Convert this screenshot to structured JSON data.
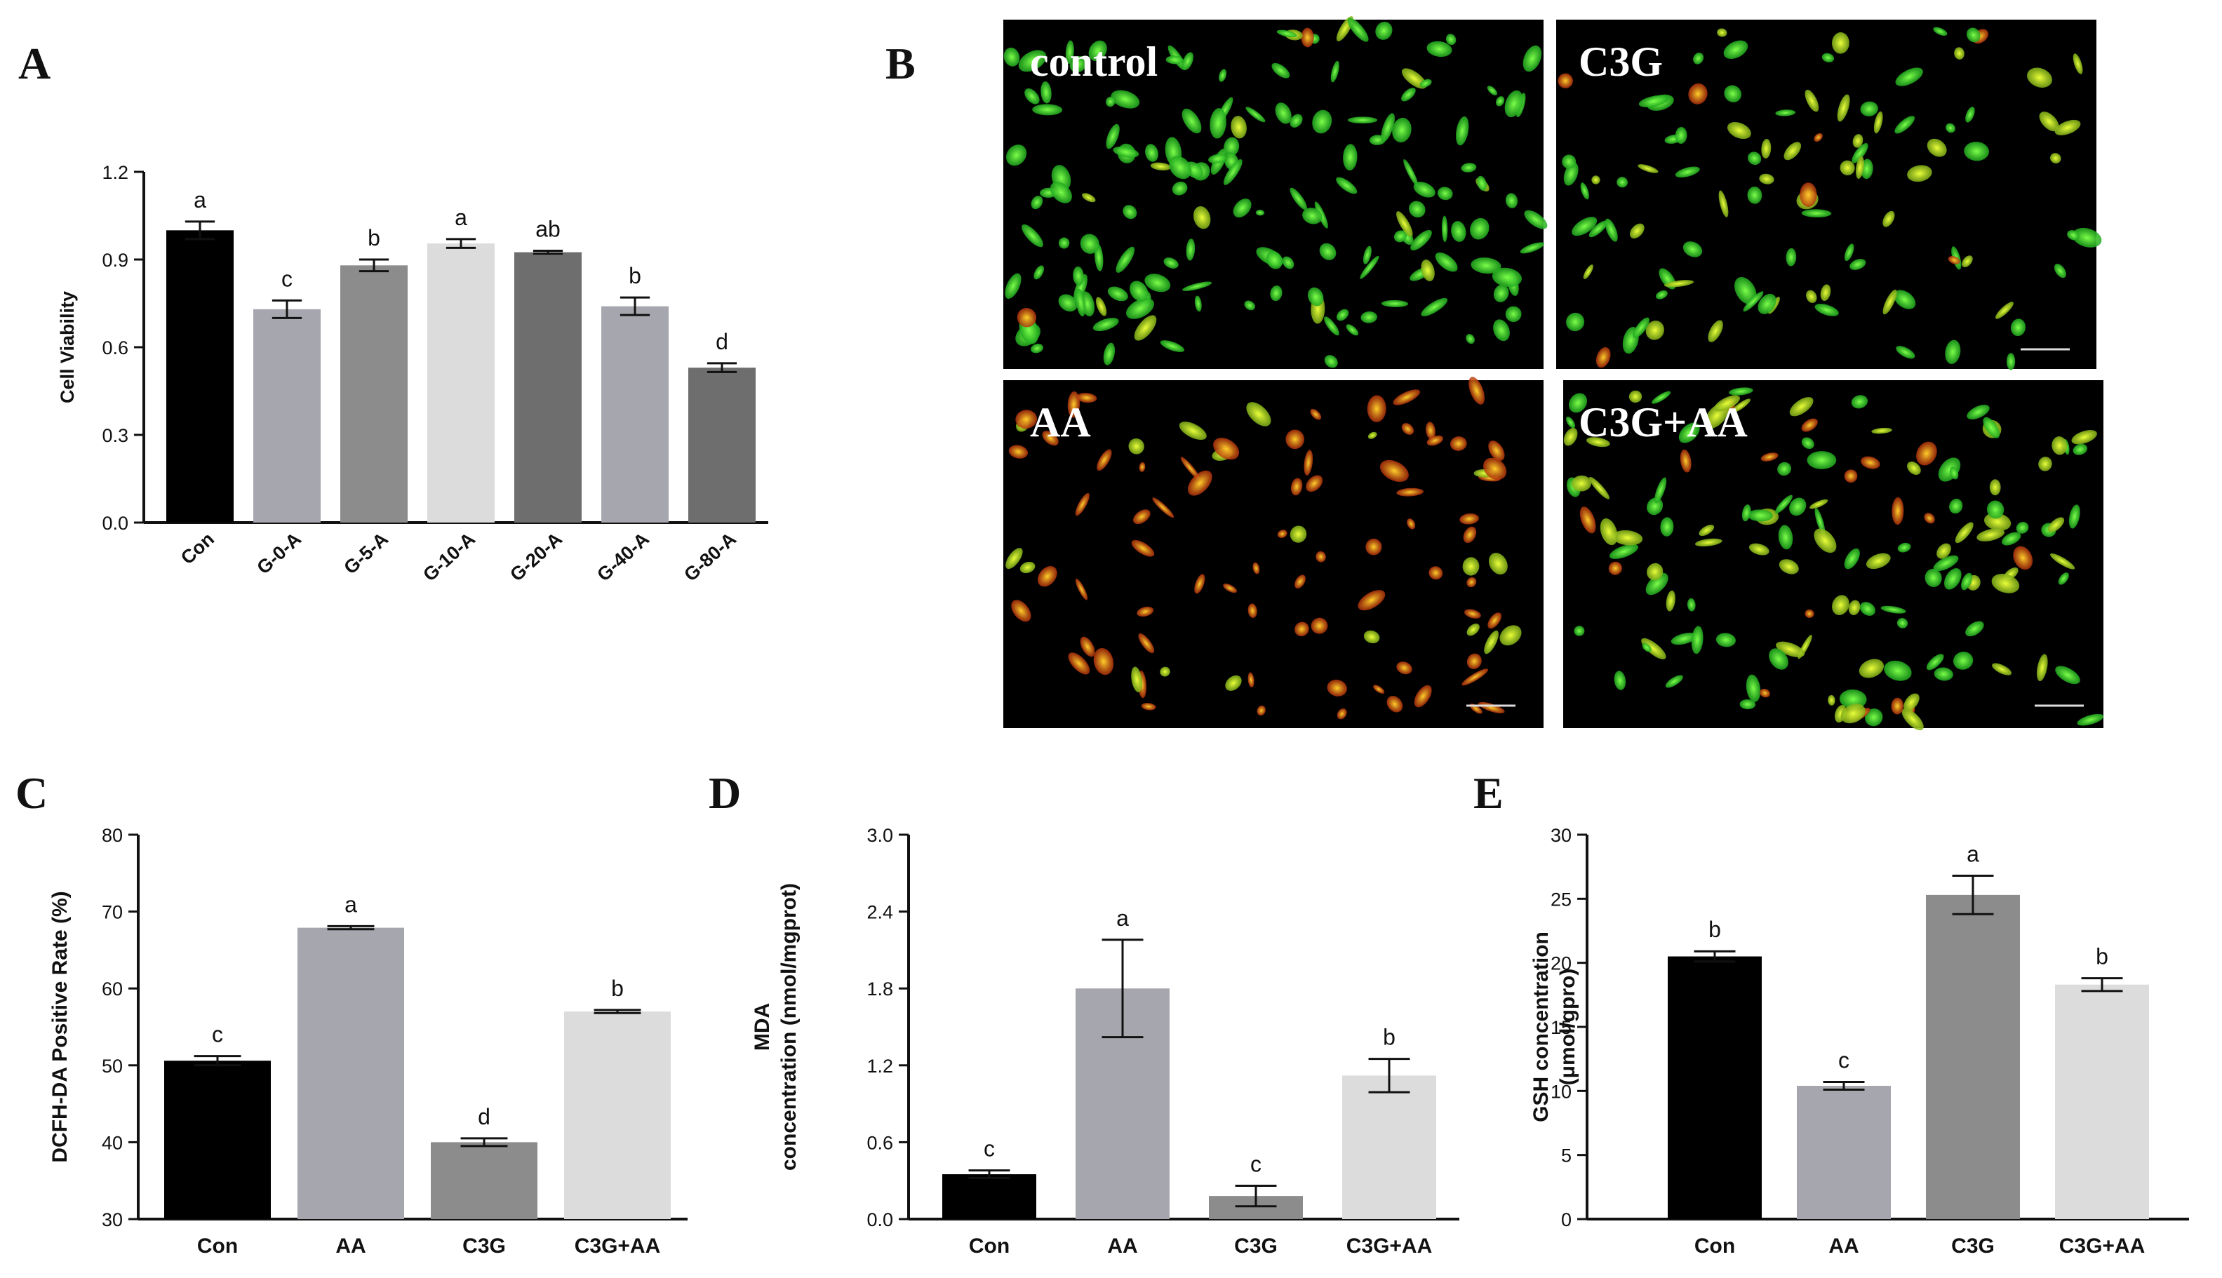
{
  "panel_labels": [
    "A",
    "B",
    "C",
    "D",
    "E"
  ],
  "chart_data": [
    {
      "panel": "A",
      "type": "bar",
      "categories": [
        "Con",
        "G-0-A",
        "G-5-A",
        "G-10-A",
        "G-20-A",
        "G-40-A",
        "G-80-A"
      ],
      "values": [
        1.0,
        0.73,
        0.88,
        0.955,
        0.925,
        0.74,
        0.53
      ],
      "errors": [
        0.03,
        0.03,
        0.02,
        0.015,
        0.005,
        0.03,
        0.015
      ],
      "letters": [
        "a",
        "c",
        "b",
        "a",
        "ab",
        "b",
        "d"
      ],
      "colors": [
        "#000000",
        "#a6a6ae",
        "#8c8c8c",
        "#dcdcdc",
        "#6e6e6e",
        "#a6a6ae",
        "#6e6e6e"
      ],
      "ylabel": "Cell Viability",
      "ylim": [
        0,
        1.2
      ],
      "yticks": [
        "0.0",
        "0.3",
        "0.6",
        "0.9",
        "1.2"
      ]
    },
    {
      "panel": "C",
      "type": "bar",
      "categories": [
        "Con",
        "AA",
        "C3G",
        "C3G+AA"
      ],
      "values": [
        50.6,
        67.9,
        40.0,
        57.0
      ],
      "errors": [
        0.6,
        0.2,
        0.5,
        0.2
      ],
      "letters": [
        "c",
        "a",
        "d",
        "b"
      ],
      "colors": [
        "#000000",
        "#a6a6ae",
        "#8c8c8c",
        "#dcdcdc"
      ],
      "ylabel": "DCFH-DA Positive Rate (%)",
      "ylim": [
        30,
        80
      ],
      "yticks": [
        "30",
        "40",
        "50",
        "60",
        "70",
        "80"
      ]
    },
    {
      "panel": "D",
      "type": "bar",
      "categories": [
        "Con",
        "AA",
        "C3G",
        "C3G+AA"
      ],
      "values": [
        0.35,
        1.8,
        0.18,
        1.12
      ],
      "errors": [
        0.03,
        0.38,
        0.08,
        0.13
      ],
      "letters": [
        "c",
        "a",
        "c",
        "b"
      ],
      "colors": [
        "#000000",
        "#a6a6ae",
        "#8c8c8c",
        "#dcdcdc"
      ],
      "ylabel_lines": [
        "MDA",
        "concentration (nmol/mgprot)"
      ],
      "ylim": [
        0,
        3.0
      ],
      "yticks": [
        "0.0",
        "0.6",
        "1.2",
        "1.8",
        "2.4",
        "3.0"
      ]
    },
    {
      "panel": "E",
      "type": "bar",
      "categories": [
        "Con",
        "AA",
        "C3G",
        "C3G+AA"
      ],
      "values": [
        20.5,
        10.4,
        25.3,
        18.3
      ],
      "errors": [
        0.4,
        0.3,
        1.5,
        0.5
      ],
      "letters": [
        "b",
        "c",
        "a",
        "b"
      ],
      "colors": [
        "#000000",
        "#a6a6ae",
        "#8c8c8c",
        "#dcdcdc"
      ],
      "ylabel_lines": [
        "GSH concentration",
        "(μmol/gpro)"
      ],
      "ylim": [
        0,
        30
      ],
      "yticks": [
        "0",
        "5",
        "10",
        "15",
        "20",
        "25",
        "30"
      ]
    }
  ],
  "micrographs": [
    {
      "label": "control",
      "tint": "mostly green"
    },
    {
      "label": "C3G",
      "tint": "green with some yellow"
    },
    {
      "label": "AA",
      "tint": "mostly red/orange"
    },
    {
      "label": "C3G+AA",
      "tint": "yellow-green"
    }
  ]
}
